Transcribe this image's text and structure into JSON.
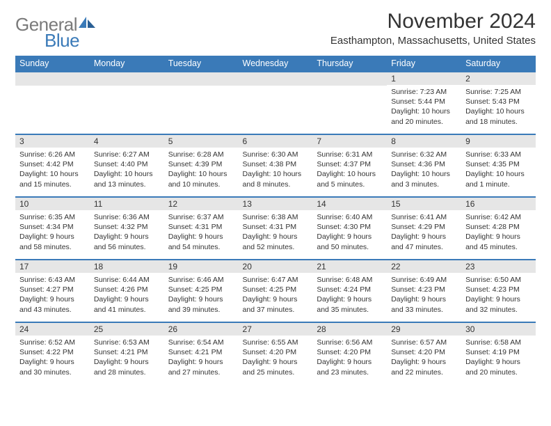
{
  "logo": {
    "text1": "General",
    "text2": "Blue"
  },
  "title": "November 2024",
  "location": "Easthampton, Massachusetts, United States",
  "colors": {
    "header_bar": "#3a7ab8",
    "daynum_bg": "#e6e6e6",
    "text": "#333333",
    "logo_gray": "#7a7a7a",
    "logo_blue": "#3a7ab8",
    "background": "#ffffff"
  },
  "typography": {
    "title_fontsize": 30,
    "location_fontsize": 15,
    "dayheader_fontsize": 12.5,
    "daynum_fontsize": 12,
    "body_fontsize": 10.5
  },
  "day_headers": [
    "Sunday",
    "Monday",
    "Tuesday",
    "Wednesday",
    "Thursday",
    "Friday",
    "Saturday"
  ],
  "weeks": [
    [
      null,
      null,
      null,
      null,
      null,
      {
        "n": "1",
        "sunrise": "7:23 AM",
        "sunset": "5:44 PM",
        "daylight": "10 hours and 20 minutes."
      },
      {
        "n": "2",
        "sunrise": "7:25 AM",
        "sunset": "5:43 PM",
        "daylight": "10 hours and 18 minutes."
      }
    ],
    [
      {
        "n": "3",
        "sunrise": "6:26 AM",
        "sunset": "4:42 PM",
        "daylight": "10 hours and 15 minutes."
      },
      {
        "n": "4",
        "sunrise": "6:27 AM",
        "sunset": "4:40 PM",
        "daylight": "10 hours and 13 minutes."
      },
      {
        "n": "5",
        "sunrise": "6:28 AM",
        "sunset": "4:39 PM",
        "daylight": "10 hours and 10 minutes."
      },
      {
        "n": "6",
        "sunrise": "6:30 AM",
        "sunset": "4:38 PM",
        "daylight": "10 hours and 8 minutes."
      },
      {
        "n": "7",
        "sunrise": "6:31 AM",
        "sunset": "4:37 PM",
        "daylight": "10 hours and 5 minutes."
      },
      {
        "n": "8",
        "sunrise": "6:32 AM",
        "sunset": "4:36 PM",
        "daylight": "10 hours and 3 minutes."
      },
      {
        "n": "9",
        "sunrise": "6:33 AM",
        "sunset": "4:35 PM",
        "daylight": "10 hours and 1 minute."
      }
    ],
    [
      {
        "n": "10",
        "sunrise": "6:35 AM",
        "sunset": "4:34 PM",
        "daylight": "9 hours and 58 minutes."
      },
      {
        "n": "11",
        "sunrise": "6:36 AM",
        "sunset": "4:32 PM",
        "daylight": "9 hours and 56 minutes."
      },
      {
        "n": "12",
        "sunrise": "6:37 AM",
        "sunset": "4:31 PM",
        "daylight": "9 hours and 54 minutes."
      },
      {
        "n": "13",
        "sunrise": "6:38 AM",
        "sunset": "4:31 PM",
        "daylight": "9 hours and 52 minutes."
      },
      {
        "n": "14",
        "sunrise": "6:40 AM",
        "sunset": "4:30 PM",
        "daylight": "9 hours and 50 minutes."
      },
      {
        "n": "15",
        "sunrise": "6:41 AM",
        "sunset": "4:29 PM",
        "daylight": "9 hours and 47 minutes."
      },
      {
        "n": "16",
        "sunrise": "6:42 AM",
        "sunset": "4:28 PM",
        "daylight": "9 hours and 45 minutes."
      }
    ],
    [
      {
        "n": "17",
        "sunrise": "6:43 AM",
        "sunset": "4:27 PM",
        "daylight": "9 hours and 43 minutes."
      },
      {
        "n": "18",
        "sunrise": "6:44 AM",
        "sunset": "4:26 PM",
        "daylight": "9 hours and 41 minutes."
      },
      {
        "n": "19",
        "sunrise": "6:46 AM",
        "sunset": "4:25 PM",
        "daylight": "9 hours and 39 minutes."
      },
      {
        "n": "20",
        "sunrise": "6:47 AM",
        "sunset": "4:25 PM",
        "daylight": "9 hours and 37 minutes."
      },
      {
        "n": "21",
        "sunrise": "6:48 AM",
        "sunset": "4:24 PM",
        "daylight": "9 hours and 35 minutes."
      },
      {
        "n": "22",
        "sunrise": "6:49 AM",
        "sunset": "4:23 PM",
        "daylight": "9 hours and 33 minutes."
      },
      {
        "n": "23",
        "sunrise": "6:50 AM",
        "sunset": "4:23 PM",
        "daylight": "9 hours and 32 minutes."
      }
    ],
    [
      {
        "n": "24",
        "sunrise": "6:52 AM",
        "sunset": "4:22 PM",
        "daylight": "9 hours and 30 minutes."
      },
      {
        "n": "25",
        "sunrise": "6:53 AM",
        "sunset": "4:21 PM",
        "daylight": "9 hours and 28 minutes."
      },
      {
        "n": "26",
        "sunrise": "6:54 AM",
        "sunset": "4:21 PM",
        "daylight": "9 hours and 27 minutes."
      },
      {
        "n": "27",
        "sunrise": "6:55 AM",
        "sunset": "4:20 PM",
        "daylight": "9 hours and 25 minutes."
      },
      {
        "n": "28",
        "sunrise": "6:56 AM",
        "sunset": "4:20 PM",
        "daylight": "9 hours and 23 minutes."
      },
      {
        "n": "29",
        "sunrise": "6:57 AM",
        "sunset": "4:20 PM",
        "daylight": "9 hours and 22 minutes."
      },
      {
        "n": "30",
        "sunrise": "6:58 AM",
        "sunset": "4:19 PM",
        "daylight": "9 hours and 20 minutes."
      }
    ]
  ],
  "labels": {
    "sunrise": "Sunrise: ",
    "sunset": "Sunset: ",
    "daylight": "Daylight: "
  }
}
